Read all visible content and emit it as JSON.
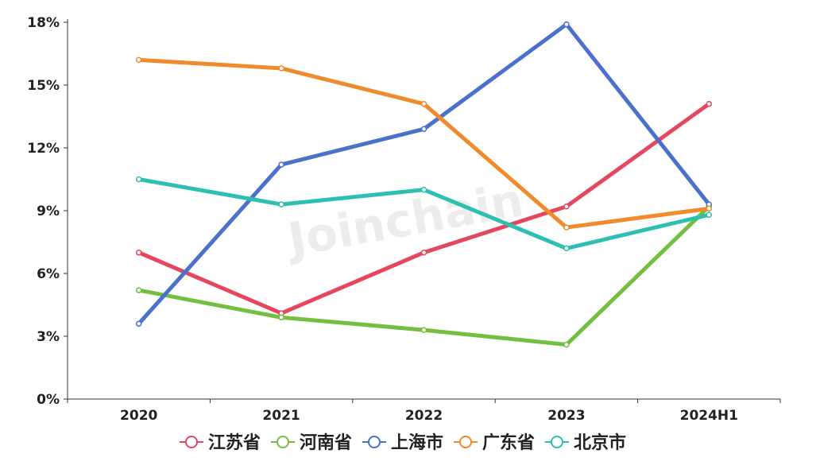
{
  "watermark": "Joinchain",
  "chart_data": {
    "type": "line",
    "categories": [
      "2020",
      "2021",
      "2022",
      "2023",
      "2024H1"
    ],
    "ylim": [
      0,
      18
    ],
    "yticks": [
      0,
      3,
      6,
      9,
      12,
      15,
      18
    ],
    "ytick_labels": [
      "0%",
      "3%",
      "6%",
      "9%",
      "12%",
      "15%",
      "18%"
    ],
    "legend_position": "bottom-center",
    "grid": false,
    "series": [
      {
        "name": "江苏省",
        "color": "#e5475e",
        "values": [
          7.0,
          4.1,
          7.0,
          9.2,
          14.1
        ]
      },
      {
        "name": "河南省",
        "color": "#74bf3f",
        "values": [
          5.2,
          3.9,
          3.3,
          2.6,
          9.2
        ]
      },
      {
        "name": "上海市",
        "color": "#4a71cb",
        "values": [
          3.6,
          11.2,
          12.9,
          17.9,
          9.3
        ]
      },
      {
        "name": "广东省",
        "color": "#f08a2c",
        "values": [
          16.2,
          15.8,
          14.1,
          8.2,
          9.1
        ]
      },
      {
        "name": "北京市",
        "color": "#2dc0b2",
        "values": [
          10.5,
          9.3,
          10.0,
          7.2,
          8.8
        ]
      }
    ]
  }
}
